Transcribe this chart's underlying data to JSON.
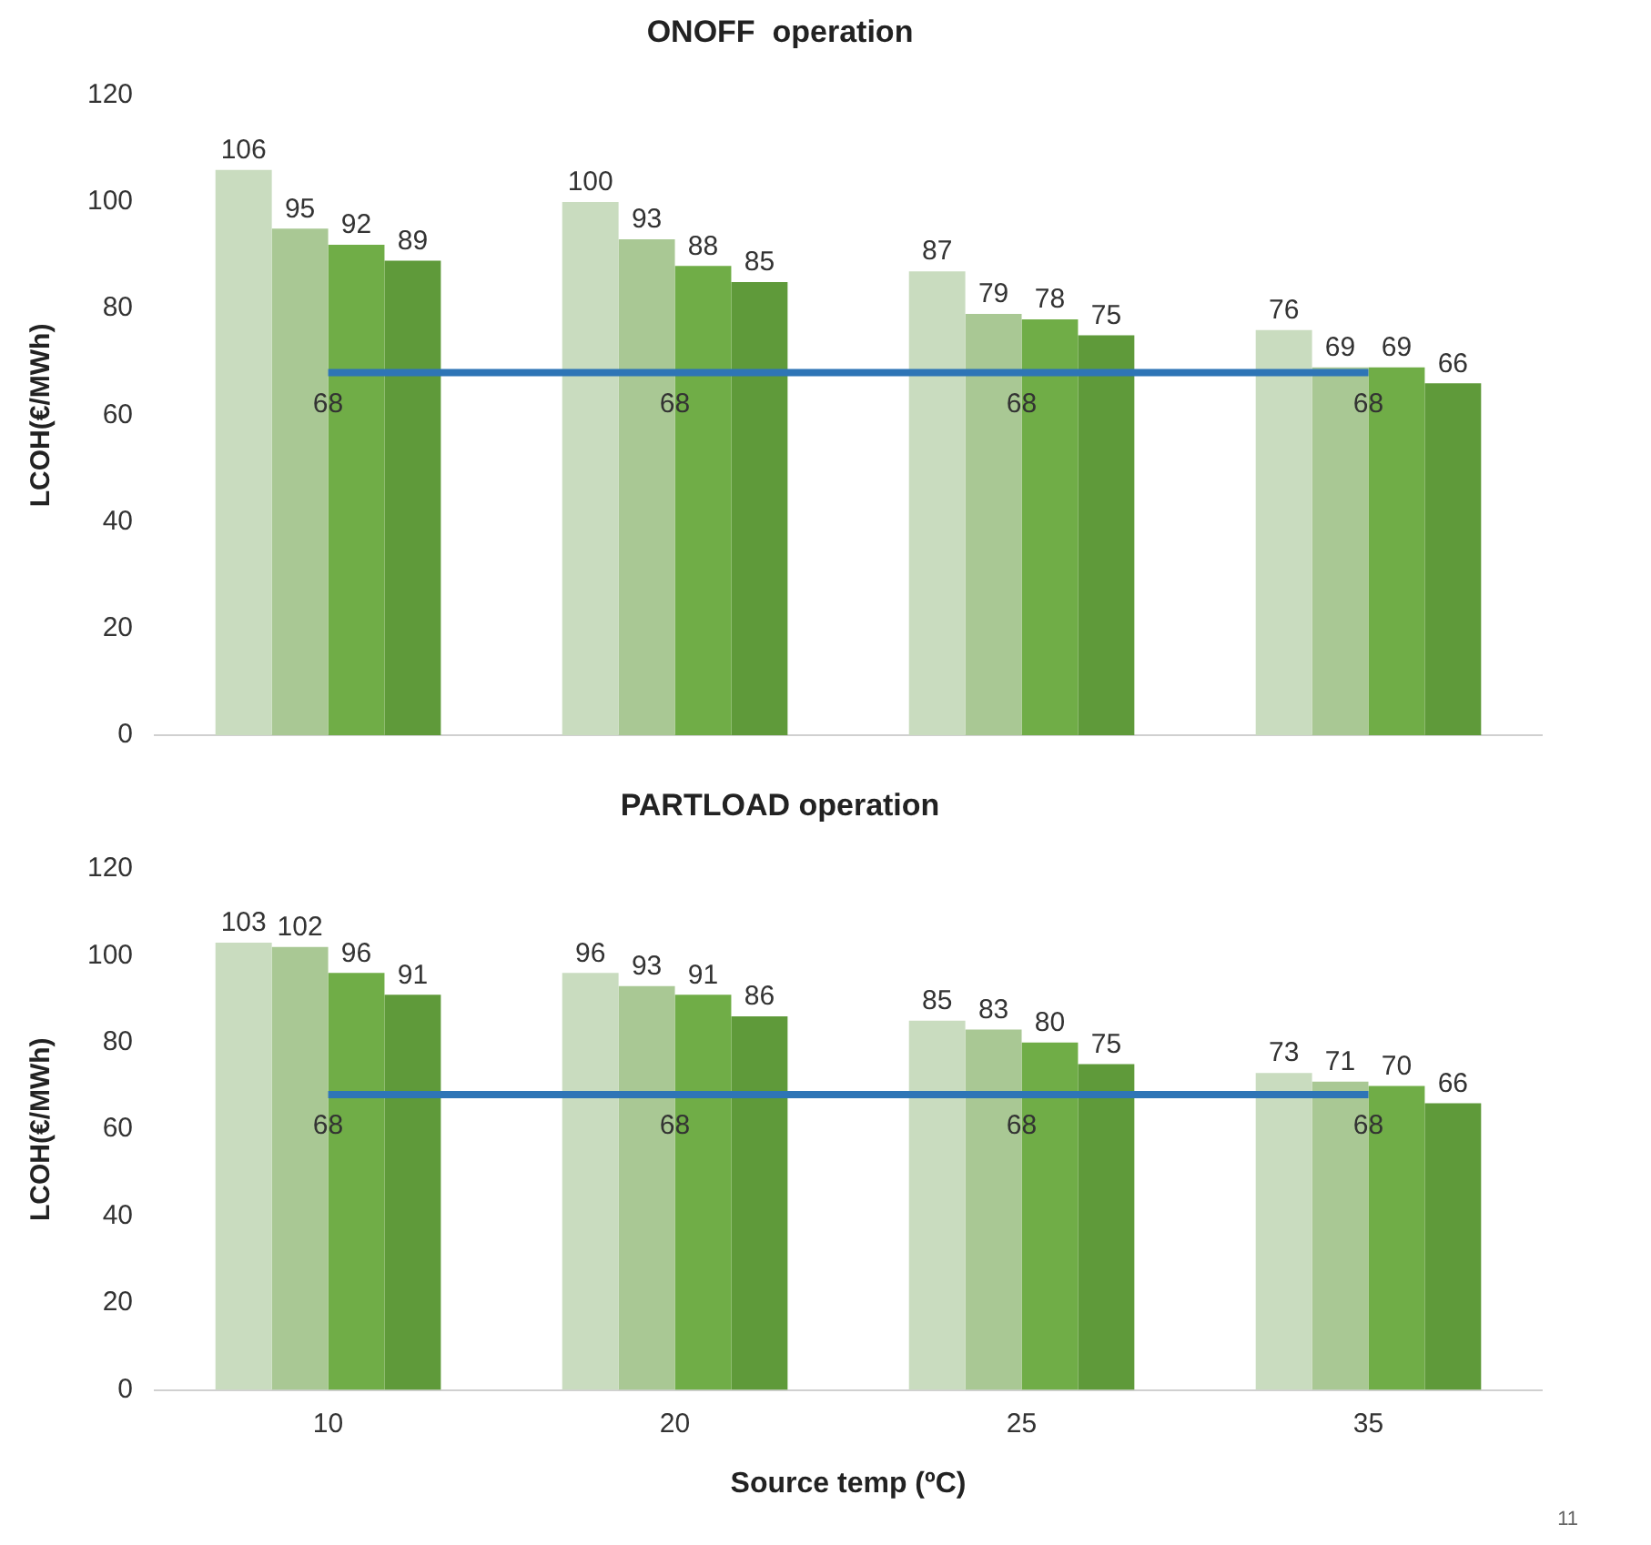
{
  "chart_data": [
    {
      "type": "bar",
      "title": "ONOFF  operation",
      "ylabel": "LCOH(€/MWh)",
      "categories": [
        "10",
        "20",
        "25",
        "35"
      ],
      "ylim": [
        0,
        120
      ],
      "yticks": [
        0,
        20,
        40,
        60,
        80,
        100,
        120
      ],
      "grid": false,
      "legend": false,
      "data_labels": true,
      "tick_labels": "y",
      "series": [
        {
          "color": "#c9dcbf",
          "values": [
            106,
            100,
            87,
            76
          ]
        },
        {
          "color": "#a9c894",
          "values": [
            95,
            93,
            79,
            69
          ]
        },
        {
          "color": "#70ad47",
          "values": [
            92,
            88,
            78,
            69
          ]
        },
        {
          "color": "#5f9a3a",
          "values": [
            89,
            85,
            75,
            66
          ]
        },
        {
          "type": "line",
          "color": "#2e75b6",
          "values": [
            68,
            68,
            68,
            68
          ],
          "marker": "none"
        }
      ]
    },
    {
      "type": "bar",
      "title": "PARTLOAD operation",
      "ylabel": "LCOH(€/MWh)",
      "xlabel": "Source temp (ºC)",
      "categories": [
        "10",
        "20",
        "25",
        "35"
      ],
      "ylim": [
        0,
        120
      ],
      "yticks": [
        0,
        20,
        40,
        60,
        80,
        100,
        120
      ],
      "grid": false,
      "legend": false,
      "data_labels": true,
      "annotations": [
        "11"
      ],
      "series": [
        {
          "color": "#c9dcbf",
          "values": [
            103,
            96,
            85,
            73
          ]
        },
        {
          "color": "#a9c894",
          "values": [
            102,
            93,
            83,
            71
          ]
        },
        {
          "color": "#70ad47",
          "values": [
            96,
            91,
            80,
            70
          ]
        },
        {
          "color": "#5f9a3a",
          "values": [
            91,
            86,
            75,
            66
          ]
        },
        {
          "type": "line",
          "color": "#2e75b6",
          "values": [
            68,
            68,
            68,
            68
          ],
          "marker": "none"
        }
      ]
    }
  ]
}
